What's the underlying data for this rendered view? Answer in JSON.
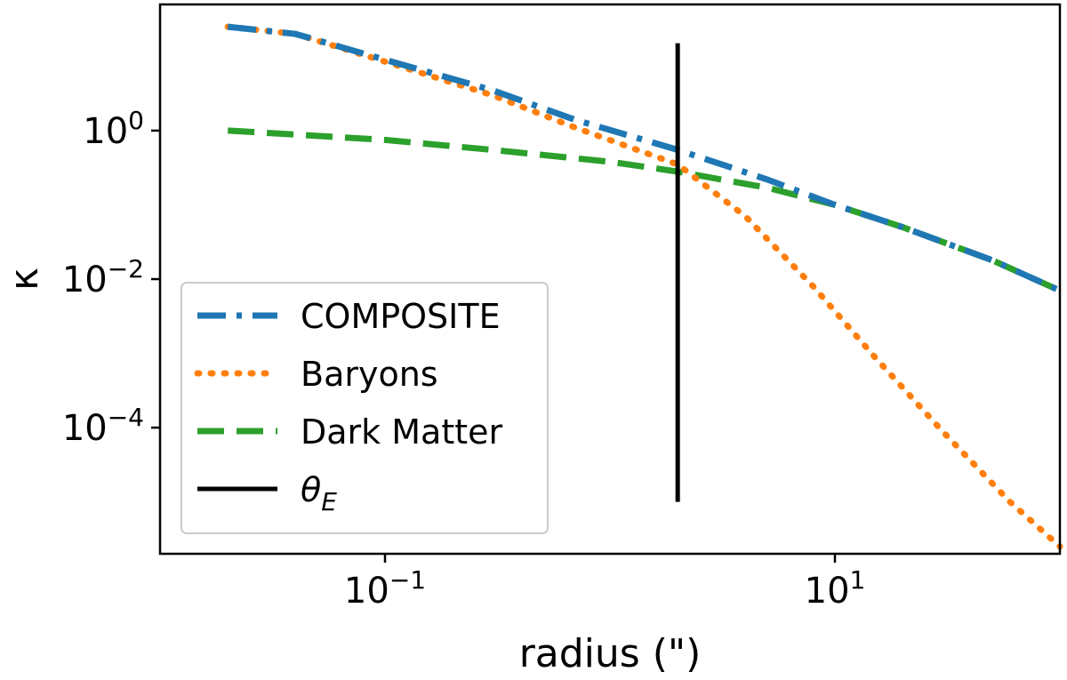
{
  "chart_data": {
    "type": "line",
    "title": "",
    "xlabel": "radius (\")",
    "ylabel": "κ",
    "xscale": "log",
    "yscale": "log",
    "xlim": [
      0.01,
      100
    ],
    "ylim": [
      2e-06,
      50
    ],
    "grid": false,
    "legend_position": "lower-left",
    "x_ticks": [
      {
        "value": 0.1,
        "base": "10",
        "exp": "−1"
      },
      {
        "value": 10,
        "base": "10",
        "exp": "1"
      }
    ],
    "y_ticks": [
      {
        "value": 1,
        "base": "10",
        "exp": "0"
      },
      {
        "value": 0.01,
        "base": "10",
        "exp": "−2"
      },
      {
        "value": 0.0001,
        "base": "10",
        "exp": "−4"
      }
    ],
    "series": [
      {
        "name": "COMPOSITE",
        "color": "#1f77b4",
        "style": "dashdot",
        "x": [
          0.02,
          0.04,
          0.1,
          0.3,
          0.7,
          2,
          5,
          10,
          20,
          50,
          100
        ],
        "y": [
          25,
          20,
          9,
          3.5,
          1.4,
          0.55,
          0.22,
          0.1,
          0.05,
          0.018,
          0.007
        ]
      },
      {
        "name": "Baryons",
        "color": "#ff7f0e",
        "style": "dotted",
        "x": [
          0.02,
          0.04,
          0.1,
          0.3,
          0.7,
          2,
          4,
          8,
          15,
          30,
          60,
          100
        ],
        "y": [
          25,
          20,
          8.5,
          3,
          1.1,
          0.35,
          0.07,
          0.008,
          0.0009,
          9e-05,
          1e-05,
          2.5e-06
        ]
      },
      {
        "name": "Dark Matter",
        "color": "#2ca02c",
        "style": "dashed",
        "x": [
          0.02,
          0.1,
          0.3,
          1,
          2,
          5,
          10,
          20,
          50,
          100
        ],
        "y": [
          1,
          0.75,
          0.55,
          0.38,
          0.28,
          0.17,
          0.1,
          0.05,
          0.018,
          0.007
        ]
      }
    ],
    "vline": {
      "name": "θE",
      "label_main": "θ",
      "label_sub": "E",
      "color": "#000000",
      "x": 2,
      "y_range": [
        1e-05,
        15
      ]
    }
  }
}
